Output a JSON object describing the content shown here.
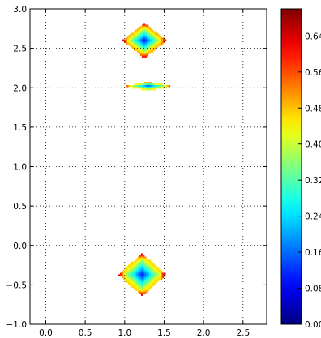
{
  "chart_data": {
    "type": "heatmap",
    "title": "",
    "xlabel": "",
    "ylabel": "",
    "xlim": [
      -0.2,
      2.8
    ],
    "ylim": [
      -1.0,
      3.0
    ],
    "grid": true,
    "x_ticks": [
      "0.0",
      "0.5",
      "1.0",
      "1.5",
      "2.0",
      "2.5"
    ],
    "x_tick_values": [
      0.0,
      0.5,
      1.0,
      1.5,
      2.0,
      2.5
    ],
    "y_ticks": [
      "3.0",
      "2.5",
      "2.0",
      "1.5",
      "1.0",
      "0.5",
      "0.0",
      "−0.5",
      "−1.0"
    ],
    "y_tick_values": [
      3.0,
      2.5,
      2.0,
      1.5,
      1.0,
      0.5,
      0.0,
      -0.5,
      -1.0
    ],
    "colorbar": {
      "colormap": "jet",
      "range": [
        0.0,
        0.7
      ],
      "ticks": [
        "0.00",
        "0.08",
        "0.16",
        "0.24",
        "0.32",
        "0.40",
        "0.48",
        "0.56",
        "0.64"
      ],
      "tick_values": [
        0.0,
        0.08,
        0.16,
        0.24,
        0.32,
        0.4,
        0.48,
        0.56,
        0.64
      ]
    },
    "regions": [
      {
        "shape": "diamond",
        "center": [
          1.25,
          2.6
        ],
        "half_width": 0.28,
        "half_height": 0.22,
        "min_value": 0.1,
        "edge_value": 0.48,
        "corner_value": 0.66
      },
      {
        "shape": "diamond",
        "center": [
          1.3,
          2.02
        ],
        "half_width": 0.3,
        "half_height": 0.055,
        "min_value": 0.14,
        "edge_value": 0.44,
        "corner_value": 0.62
      },
      {
        "shape": "diamond",
        "center": [
          1.22,
          -0.37
        ],
        "half_width": 0.3,
        "half_height": 0.27,
        "min_value": 0.1,
        "edge_value": 0.46,
        "corner_value": 0.68
      }
    ]
  }
}
